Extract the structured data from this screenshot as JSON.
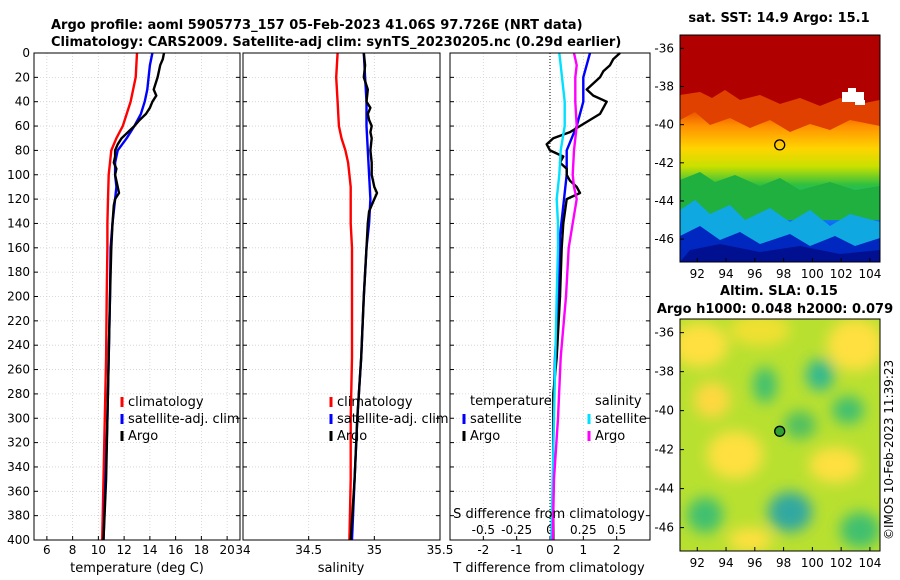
{
  "title": {
    "line1": "Argo profile: aoml 5905773_157 05-Feb-2023 41.06S 97.726E (NRT data)",
    "line2": "Climatology: CARS2009. Satellite-adj clim: synTS_20230205.nc (0.29d earlier)"
  },
  "colors": {
    "climatology": "#ff0000",
    "satellite": "#0000ff",
    "argo": "#000000",
    "sat_diff": "#00e0ff",
    "argo_diff": "#ff00ff",
    "grid": "#c8c8c8"
  },
  "depth_ticks": [
    "0",
    "20",
    "40",
    "60",
    "80",
    "100",
    "120",
    "140",
    "160",
    "180",
    "200",
    "220",
    "240",
    "260",
    "280",
    "300",
    "320",
    "340",
    "360",
    "380",
    "400"
  ],
  "chart_data": [
    {
      "type": "line",
      "id": "temperature",
      "xlabel": "temperature (deg C)",
      "xlim": [
        5,
        21
      ],
      "ylim": [
        400,
        0
      ],
      "xticks": [
        "6",
        "8",
        "10",
        "12",
        "14",
        "16",
        "18",
        "20"
      ],
      "xtick_values": [
        6,
        8,
        10,
        12,
        14,
        16,
        18,
        20
      ],
      "legend": [
        "climatology",
        "satellite-adj. clim",
        "Argo"
      ],
      "series": [
        {
          "name": "climatology",
          "color": "#ff0000",
          "depth": [
            0,
            20,
            40,
            50,
            60,
            70,
            80,
            90,
            100,
            120,
            140,
            160,
            200,
            250,
            300,
            350,
            400
          ],
          "values": [
            13.0,
            12.9,
            12.5,
            12.2,
            11.9,
            11.4,
            11.0,
            10.9,
            10.8,
            10.75,
            10.7,
            10.7,
            10.65,
            10.6,
            10.5,
            10.4,
            10.3
          ]
        },
        {
          "name": "satellite-adj. clim",
          "color": "#0000ff",
          "depth": [
            0,
            10,
            20,
            30,
            40,
            50,
            60,
            70,
            80,
            90,
            100,
            110,
            120,
            140,
            160,
            200,
            250,
            300,
            350,
            400
          ],
          "values": [
            14.2,
            14.0,
            13.9,
            13.8,
            13.6,
            13.3,
            12.8,
            12.2,
            11.5,
            11.3,
            11.3,
            11.4,
            11.3,
            11.1,
            10.95,
            10.9,
            10.8,
            10.7,
            10.55,
            10.4
          ]
        },
        {
          "name": "Argo",
          "color": "#000000",
          "depth": [
            0,
            5,
            10,
            20,
            30,
            35,
            40,
            45,
            50,
            55,
            60,
            65,
            70,
            75,
            80,
            85,
            90,
            95,
            100,
            110,
            115,
            120,
            125,
            140,
            160,
            200,
            250,
            300,
            350,
            400
          ],
          "values": [
            15.1,
            15.0,
            14.8,
            14.6,
            14.3,
            14.5,
            14.2,
            14.0,
            13.7,
            13.2,
            12.8,
            12.3,
            11.8,
            11.5,
            11.3,
            11.3,
            11.2,
            11.4,
            11.3,
            11.5,
            11.6,
            11.3,
            11.2,
            11.1,
            11.0,
            10.9,
            10.8,
            10.7,
            10.6,
            10.4
          ]
        }
      ]
    },
    {
      "type": "line",
      "id": "salinity",
      "xlabel": "salinity",
      "xlim": [
        34,
        35.5
      ],
      "ylim": [
        400,
        0
      ],
      "xticks": [
        "34",
        "34.5",
        "35",
        "35.5"
      ],
      "xtick_values": [
        34,
        34.5,
        35,
        35.5
      ],
      "legend": [
        "climatology",
        "satellite-adj. clim",
        "Argo"
      ],
      "series": [
        {
          "name": "climatology",
          "color": "#ff0000",
          "depth": [
            0,
            20,
            40,
            60,
            70,
            80,
            90,
            100,
            110,
            120,
            140,
            160,
            200,
            250,
            300,
            350,
            400
          ],
          "values": [
            34.72,
            34.71,
            34.72,
            34.73,
            34.75,
            34.78,
            34.8,
            34.81,
            34.82,
            34.82,
            34.82,
            34.83,
            34.83,
            34.83,
            34.82,
            34.82,
            34.81
          ]
        },
        {
          "name": "satellite-adj. clim",
          "color": "#0000ff",
          "depth": [
            0,
            20,
            40,
            60,
            80,
            100,
            120,
            140,
            160,
            200,
            250,
            300,
            350,
            400
          ],
          "values": [
            34.92,
            34.93,
            34.94,
            34.94,
            34.95,
            34.96,
            34.97,
            34.96,
            34.94,
            34.92,
            34.9,
            34.87,
            34.85,
            34.83
          ]
        },
        {
          "name": "Argo",
          "color": "#000000",
          "depth": [
            0,
            10,
            20,
            30,
            40,
            45,
            50,
            55,
            60,
            65,
            70,
            80,
            90,
            100,
            105,
            110,
            115,
            120,
            125,
            130,
            140,
            160,
            200,
            250,
            300,
            350,
            400
          ],
          "values": [
            34.92,
            34.93,
            34.92,
            34.95,
            34.94,
            34.97,
            34.95,
            34.96,
            34.98,
            34.97,
            34.98,
            34.97,
            34.98,
            34.98,
            34.99,
            35.0,
            35.02,
            35.0,
            34.98,
            34.96,
            34.95,
            34.94,
            34.92,
            34.9,
            34.87,
            34.85,
            34.82
          ]
        }
      ]
    },
    {
      "type": "line",
      "id": "difference",
      "xlabel": "T difference from climatology",
      "xlabel_top": "S difference from climatology",
      "xlim": [
        -3,
        3
      ],
      "ylim": [
        400,
        0
      ],
      "xticks": [
        "-2",
        "-1",
        "0",
        "1",
        "2"
      ],
      "xtick_values": [
        -2,
        -1,
        0,
        1,
        2
      ],
      "sticks": [
        "-0.5",
        "-0.25",
        "0",
        "0.25",
        "0.5"
      ],
      "stick_values": [
        -0.5,
        -0.25,
        0,
        0.25,
        0.5
      ],
      "legend_temperature": {
        "heading": "temperature",
        "items": [
          "satellite",
          "Argo"
        ]
      },
      "legend_salinity": {
        "heading": "salinity",
        "items": [
          "satellite",
          "Argo"
        ]
      },
      "series": [
        {
          "name": "T satellite",
          "color": "#0000ff",
          "depth": [
            0,
            20,
            40,
            60,
            80,
            100,
            150,
            200,
            250,
            300,
            350,
            400
          ],
          "values": [
            1.2,
            1.0,
            1.0,
            0.8,
            0.5,
            0.5,
            0.3,
            0.25,
            0.15,
            0.1,
            0.1,
            0.05
          ]
        },
        {
          "name": "T Argo",
          "color": "#000000",
          "depth": [
            0,
            5,
            10,
            15,
            20,
            30,
            35,
            40,
            50,
            60,
            65,
            70,
            75,
            80,
            85,
            90,
            95,
            100,
            105,
            110,
            115,
            120,
            140,
            160,
            200,
            250,
            280,
            300,
            350,
            400
          ],
          "values": [
            2.1,
            1.9,
            1.8,
            1.6,
            1.5,
            1.1,
            1.3,
            1.7,
            1.5,
            0.9,
            0.6,
            0.1,
            -0.1,
            0.0,
            0.4,
            0.3,
            0.5,
            0.5,
            0.6,
            0.8,
            0.9,
            0.5,
            0.4,
            0.35,
            0.3,
            0.2,
            0.1,
            0.1,
            0.1,
            0.1
          ]
        },
        {
          "name": "S satellite",
          "color": "#00e0ff",
          "depth": [
            0,
            10,
            20,
            40,
            60,
            80,
            100,
            120,
            140,
            160,
            200,
            250,
            300,
            350,
            400
          ],
          "values": [
            0.07,
            0.08,
            0.09,
            0.11,
            0.11,
            0.08,
            0.07,
            0.05,
            0.06,
            0.06,
            0.05,
            0.04,
            0.03,
            0.02,
            0.01
          ]
        },
        {
          "name": "S Argo",
          "color": "#ff00ff",
          "depth": [
            0,
            10,
            20,
            40,
            60,
            80,
            100,
            110,
            120,
            140,
            160,
            200,
            250,
            300,
            350,
            400
          ],
          "values": [
            0.18,
            0.2,
            0.19,
            0.19,
            0.2,
            0.18,
            0.17,
            0.18,
            0.2,
            0.17,
            0.14,
            0.12,
            0.08,
            0.06,
            0.03,
            0.02
          ]
        }
      ]
    },
    {
      "type": "heatmap",
      "id": "sst",
      "title": "sat. SST: 14.9 Argo: 15.1",
      "xticks": [
        "92",
        "94",
        "96",
        "98",
        "100",
        "102",
        "104"
      ],
      "xtick_values": [
        92,
        94,
        96,
        98,
        100,
        102,
        104
      ],
      "yticks": [
        "-36",
        "-38",
        "-40",
        "-42",
        "-44",
        "-46"
      ],
      "ytick_values": [
        -36,
        -38,
        -40,
        -42,
        -44,
        -46
      ],
      "xlim": [
        90.8,
        104.7
      ],
      "ylim": [
        -47.2,
        -35.3
      ],
      "argo_position": [
        97.726,
        -41.06
      ]
    },
    {
      "type": "heatmap",
      "id": "sla",
      "title_line1": "Altim. SLA: 0.15",
      "title_line2": "Argo h1000: 0.048 h2000: 0.079",
      "xticks": [
        "92",
        "94",
        "96",
        "98",
        "100",
        "102",
        "104"
      ],
      "xtick_values": [
        92,
        94,
        96,
        98,
        100,
        102,
        104
      ],
      "yticks": [
        "-36",
        "-38",
        "-40",
        "-42",
        "-44",
        "-46"
      ],
      "ytick_values": [
        -36,
        -38,
        -40,
        -42,
        -44,
        -46
      ],
      "xlim": [
        90.8,
        104.7
      ],
      "ylim": [
        -47.2,
        -35.3
      ],
      "argo_position": [
        97.726,
        -41.06
      ]
    }
  ],
  "watermark": "©IMOS 10-Feb-2023 11:39:23"
}
